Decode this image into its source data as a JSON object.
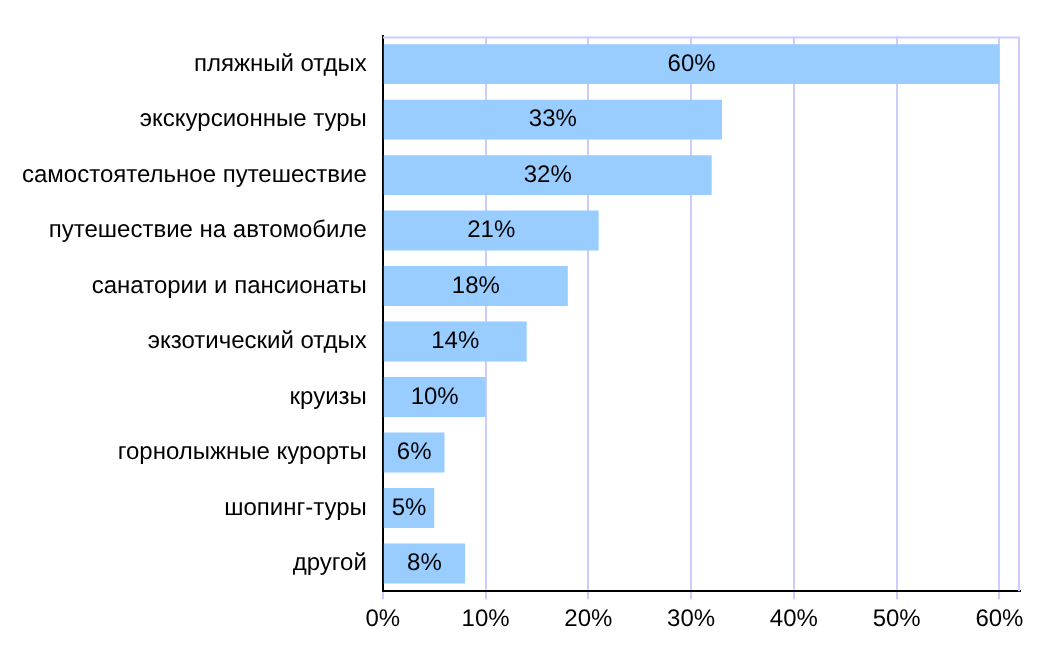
{
  "chart_data": {
    "type": "bar",
    "orientation": "horizontal",
    "categories": [
      "пляжный отдых",
      "экскурсионные туры",
      "самостоятельное путешествие",
      "путешествие на автомобиле",
      "санатории и пансионаты",
      "экзотический отдых",
      "круизы",
      "горнолыжные курорты",
      "шопинг-туры",
      "другой"
    ],
    "values": [
      60,
      33,
      32,
      21,
      18,
      14,
      10,
      6,
      5,
      8
    ],
    "value_labels": [
      "60%",
      "33%",
      "32%",
      "21%",
      "18%",
      "14%",
      "10%",
      "6%",
      "5%",
      "8%"
    ],
    "color": "#99ccff",
    "xlim": [
      0,
      62
    ],
    "xticks": [
      {
        "value": 0,
        "label": "0%"
      },
      {
        "value": 10,
        "label": "10%"
      },
      {
        "value": 20,
        "label": "20%"
      },
      {
        "value": 30,
        "label": "30%"
      },
      {
        "value": 40,
        "label": "40%"
      },
      {
        "value": 50,
        "label": "50%"
      },
      {
        "value": 60,
        "label": "60%"
      }
    ],
    "grid": "x",
    "legend": false
  }
}
